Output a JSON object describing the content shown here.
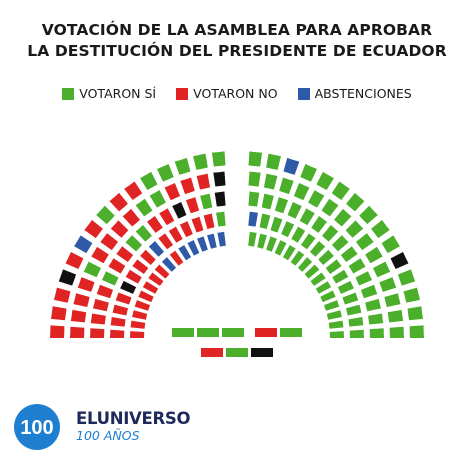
{
  "title": {
    "line1": "VOTACIÓN DE LA ASAMBLEA PARA APROBAR",
    "line2": "LA DESTITUCIÓN DEL PRESIDENTE DE ECUADOR"
  },
  "legend": [
    {
      "label": "VOTARON SÍ",
      "color": "#4caf2c"
    },
    {
      "label": "VOTARON NO",
      "color": "#e02424"
    },
    {
      "label": "ABSTENCIONES",
      "color": "#2f5aa8"
    }
  ],
  "colors": {
    "si": "#4caf2c",
    "no": "#e02424",
    "abstencion": "#2f5aa8",
    "ausente": "#111111",
    "brand_dark": "#1f2a5c",
    "brand_blue": "#1e7fd0"
  },
  "chart_data": {
    "type": "hemicycle",
    "categories": [
      "VOTARON SÍ",
      "VOTARON NO",
      "ABSTENCIONES"
    ],
    "left_wing_rows": [
      [
        "no",
        "no",
        "no",
        "no",
        "no",
        "no",
        "no",
        "no",
        "abstencion",
        "no",
        "abstencion",
        "abstencion",
        "abstencion",
        "abstencion",
        "abstencion"
      ],
      [
        "no",
        "no",
        "no",
        "no",
        "ausente",
        "no",
        "no",
        "no",
        "abstencion",
        "no",
        "no",
        "no",
        "no",
        "no",
        "si"
      ],
      [
        "no",
        "no",
        "no",
        "no",
        "si",
        "no",
        "no",
        "si",
        "si",
        "no",
        "no",
        "ausente",
        "no",
        "si",
        "ausente"
      ],
      [
        "no",
        "no",
        "no",
        "no",
        "si",
        "no",
        "no",
        "no",
        "no",
        "si",
        "si",
        "no",
        "no",
        "no",
        "ausente"
      ],
      [
        "no",
        "no",
        "no",
        "ausente",
        "no",
        "abstencion",
        "no",
        "si",
        "no",
        "no",
        "si",
        "si",
        "si",
        "si",
        "si"
      ]
    ],
    "right_wing_rows": [
      [
        "si",
        "si",
        "si",
        "si",
        "si",
        "si",
        "si",
        "si",
        "si",
        "si",
        "si",
        "si",
        "si",
        "si",
        "si"
      ],
      [
        "abstencion",
        "si",
        "si",
        "si",
        "si",
        "si",
        "si",
        "si",
        "si",
        "si",
        "si",
        "si",
        "si",
        "si",
        "si"
      ],
      [
        "si",
        "si",
        "si",
        "si",
        "si",
        "si",
        "si",
        "si",
        "si",
        "si",
        "si",
        "si",
        "si",
        "si",
        "si"
      ],
      [
        "si",
        "si",
        "si",
        "si",
        "si",
        "si",
        "si",
        "si",
        "si",
        "si",
        "si",
        "si",
        "si",
        "si",
        "si"
      ],
      [
        "si",
        "si",
        "abstencion",
        "si",
        "si",
        "si",
        "si",
        "si",
        "si",
        "si",
        "ausente",
        "si",
        "si",
        "si",
        "si"
      ]
    ],
    "center_rows": [
      [
        "si",
        "si",
        "si",
        "no",
        "si"
      ],
      [
        "no",
        "si",
        "ausente"
      ]
    ]
  },
  "brand": {
    "badge": "100",
    "name": "ELUNIVERSO",
    "subtitle": "100 AÑOS"
  }
}
